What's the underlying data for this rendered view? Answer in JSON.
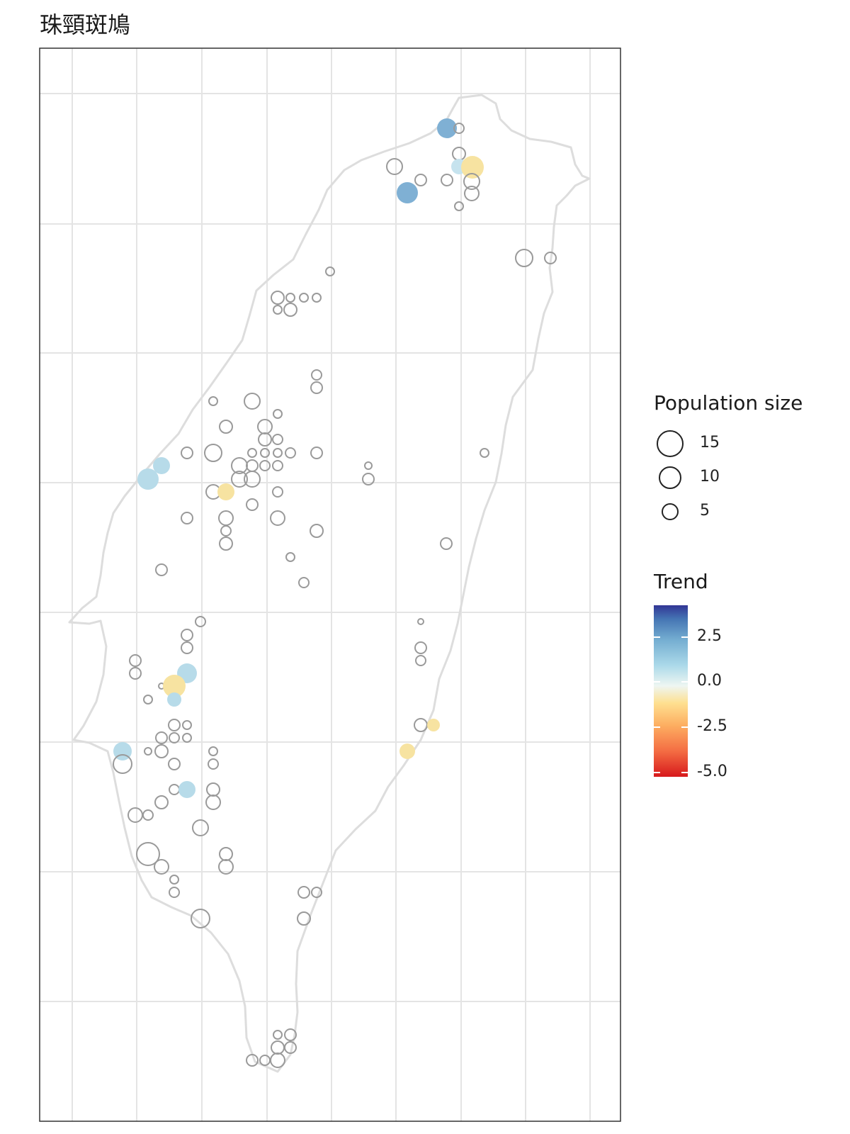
{
  "title": "珠頸斑鳩",
  "map": {
    "type": "proportional-symbol-map",
    "region": "Taiwan",
    "legend_size_title": "Population size",
    "legend_size_values": [
      {
        "label": "15",
        "value": 15
      },
      {
        "label": "10",
        "value": 10
      },
      {
        "label": "5",
        "value": 5
      }
    ],
    "legend_trend_title": "Trend",
    "legend_trend_ticks": [
      {
        "label": "2.5",
        "value": 2.5
      },
      {
        "label": "0.0",
        "value": 0.0
      },
      {
        "label": "-2.5",
        "value": -2.5
      },
      {
        "label": "-5.0",
        "value": -5.0
      }
    ],
    "trend_range": [
      -5.5,
      4.5
    ],
    "colors": {
      "outline": "#dddddd",
      "grid": "#e4e4e4",
      "no_trend_stroke": "#9a9a9a",
      "gradient": [
        "#d7191c",
        "#f46d43",
        "#fdae61",
        "#fee090",
        "#e0f3f8",
        "#abd9e9",
        "#74add1",
        "#4575b4",
        "#313695"
      ]
    }
  }
}
